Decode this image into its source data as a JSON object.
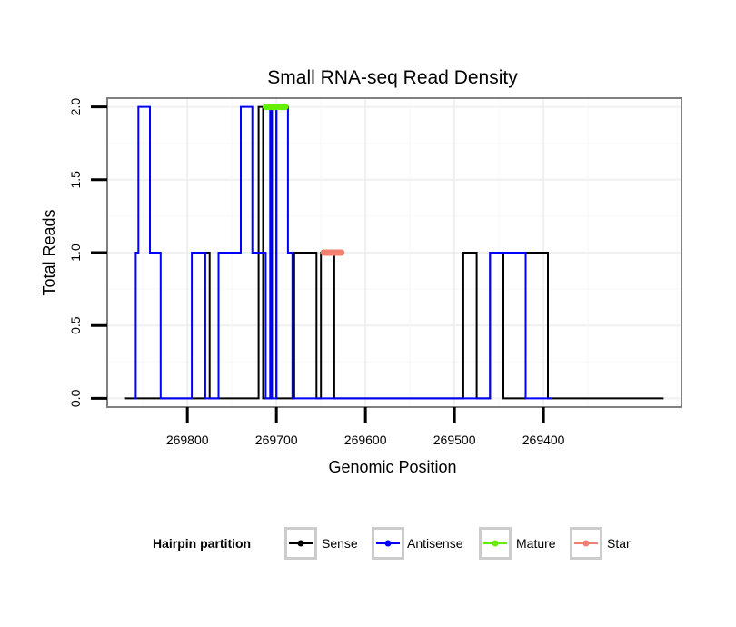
{
  "chart_data": {
    "type": "line",
    "title": "Small RNA-seq Read Density",
    "xlabel": "Genomic Position",
    "ylabel": "Total Reads",
    "x_reversed": true,
    "xlim": [
      269890,
      269245
    ],
    "ylim": [
      -0.06,
      2.06
    ],
    "x_ticks": [
      269800,
      269700,
      269600,
      269500,
      269400
    ],
    "x_tick_labels": [
      "269800",
      "269700",
      "269600",
      "269500",
      "269400"
    ],
    "y_ticks": [
      0.0,
      0.5,
      1.0,
      1.5,
      2.0
    ],
    "y_tick_labels": [
      "0.0",
      "0.5",
      "1.0",
      "1.5",
      "2.0"
    ],
    "grid": true,
    "legend": {
      "title": "Hairpin partition",
      "position": "bottom",
      "entries": [
        "Sense",
        "Antisense",
        "Mature",
        "Star"
      ]
    },
    "series": [
      {
        "name": "Sense",
        "color": "#000000",
        "x": [
          269870,
          269780,
          269780,
          269775,
          269775,
          269765,
          269765,
          269720,
          269720,
          269715,
          269715,
          269705,
          269705,
          269700,
          269700,
          269685,
          269685,
          269680,
          269680,
          269655,
          269655,
          269650,
          269650,
          269635,
          269635,
          269490,
          269490,
          269475,
          269475,
          269460,
          269460,
          269445,
          269445,
          269440,
          269440,
          269420,
          269420,
          269395,
          269395,
          269265
        ],
        "y": [
          0,
          0,
          1,
          1,
          0,
          0,
          0,
          0,
          2,
          2,
          0,
          0,
          2,
          2,
          0,
          0,
          0,
          0,
          1,
          1,
          0,
          0,
          1,
          1,
          0,
          0,
          1,
          1,
          0,
          0,
          1,
          1,
          0,
          0,
          0,
          0,
          1,
          1,
          0,
          0
        ]
      },
      {
        "name": "Antisense",
        "color": "#0000ff",
        "x": [
          269860,
          269858,
          269858,
          269855,
          269855,
          269842,
          269842,
          269830,
          269830,
          269810,
          269810,
          269795,
          269795,
          269780,
          269780,
          269765,
          269765,
          269740,
          269740,
          269727,
          269727,
          269712,
          269712,
          269707,
          269707,
          269705,
          269705,
          269702,
          269702,
          269700,
          269700,
          269687,
          269687,
          269682,
          269682,
          269655,
          269655,
          269460,
          269460,
          269440,
          269440,
          269420,
          269420,
          269395,
          269395,
          269390
        ],
        "y": [
          0,
          0,
          1,
          1,
          2,
          2,
          1,
          1,
          0,
          0,
          0,
          0,
          1,
          1,
          0,
          0,
          1,
          1,
          2,
          2,
          1,
          1,
          0,
          0,
          2,
          2,
          0,
          0,
          0,
          0,
          2,
          2,
          1,
          1,
          0,
          0,
          0,
          0,
          1,
          1,
          1,
          1,
          0,
          0,
          0,
          0
        ]
      },
      {
        "name": "Mature",
        "color": "#66ee00",
        "x": [
          269712,
          269690
        ],
        "y": [
          2,
          2
        ]
      },
      {
        "name": "Star",
        "color": "#f08070",
        "x": [
          269647,
          269627
        ],
        "y": [
          1,
          1
        ]
      }
    ]
  }
}
